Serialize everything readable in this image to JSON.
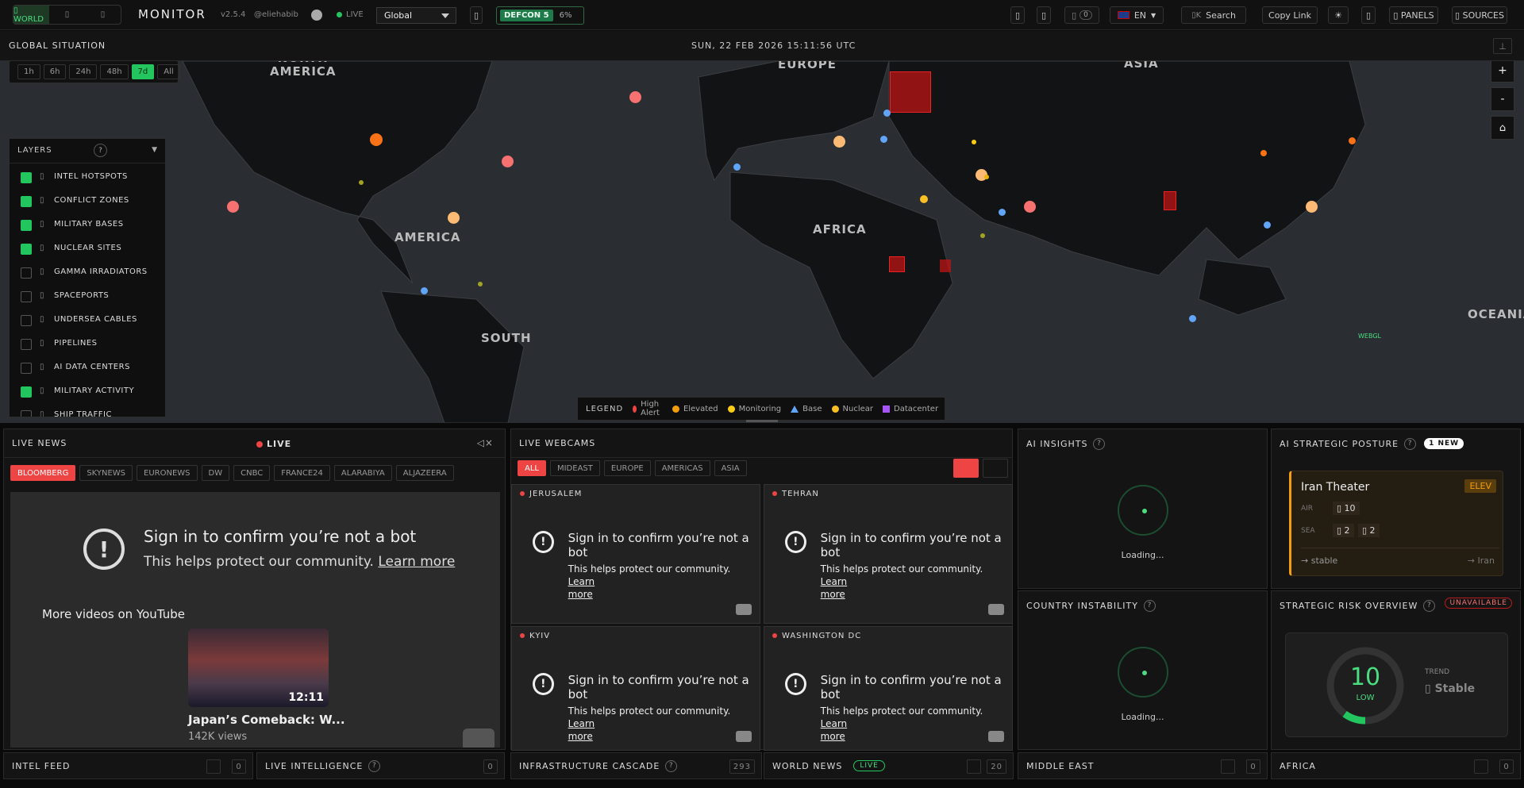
{
  "topbar": {
    "variant_tabs": [
      "▯ WORLD",
      "▯",
      "▯"
    ],
    "brand": "MONITOR",
    "version": "v2.5.4",
    "author": "@eliehabib",
    "live_label": "LIVE",
    "region_select": "Global",
    "defcon_label": "DEFCON 5",
    "defcon_pct": "6%",
    "notif_count": "0",
    "lang": "EN",
    "search_shortcut": "▯K",
    "search_label": "Search",
    "copy_link": "Copy Link",
    "panels_label": "▯ PANELS",
    "sources_label": "▯ SOURCES"
  },
  "global": {
    "title": "GLOBAL SITUATION",
    "datetime": "SUN, 22 FEB 2026 15:11:56 UTC",
    "time_filters": [
      "1h",
      "6h",
      "24h",
      "48h",
      "7d",
      "All"
    ],
    "active_filter": "7d",
    "zoom_in": "+",
    "zoom_out": "-",
    "home": "⌂"
  },
  "layers": {
    "title": "LAYERS",
    "help": "?",
    "items": [
      {
        "label": "INTEL HOTSPOTS",
        "checked": true
      },
      {
        "label": "CONFLICT ZONES",
        "checked": true
      },
      {
        "label": "MILITARY BASES",
        "checked": true
      },
      {
        "label": "NUCLEAR SITES",
        "checked": true
      },
      {
        "label": "GAMMA IRRADIATORS",
        "checked": false
      },
      {
        "label": "SPACEPORTS",
        "checked": false
      },
      {
        "label": "UNDERSEA CABLES",
        "checked": false
      },
      {
        "label": "PIPELINES",
        "checked": false
      },
      {
        "label": "AI DATA CENTERS",
        "checked": false
      },
      {
        "label": "MILITARY ACTIVITY",
        "checked": true
      },
      {
        "label": "SHIP TRAFFIC",
        "checked": false
      }
    ]
  },
  "map_labels": {
    "north_america": "NORTH\nAMERICA",
    "europe": "EUROPE",
    "asia": "ASIA",
    "africa": "AFRICA",
    "america": "AMERICA",
    "south": "SOUTH",
    "oceania": "OCEANIA",
    "webgl": "WEBGL"
  },
  "legend": {
    "title": "LEGEND",
    "items": [
      {
        "label": "High Alert",
        "color": "#ef4444",
        "shape": "dot"
      },
      {
        "label": "Elevated",
        "color": "#f59e0b",
        "shape": "dot"
      },
      {
        "label": "Monitoring",
        "color": "#facc15",
        "shape": "dot"
      },
      {
        "label": "Base",
        "color": "#60a5fa",
        "shape": "triangle"
      },
      {
        "label": "Nuclear",
        "color": "#fbbf24",
        "shape": "dot"
      },
      {
        "label": "Datacenter",
        "color": "#a855f7",
        "shape": "square"
      }
    ]
  },
  "live_news": {
    "title": "LIVE NEWS",
    "live": "LIVE",
    "channels": [
      "BLOOMBERG",
      "SKYNEWS",
      "EURONEWS",
      "DW",
      "CNBC",
      "FRANCE24",
      "ALARABIYA",
      "ALJAZEERA"
    ],
    "active": "BLOOMBERG",
    "bot_title": "Sign in to confirm you’re not a bot",
    "bot_sub": "This helps protect our community.",
    "learn_more": "Learn more",
    "more_videos": "More videos on YouTube",
    "video_duration": "12:11",
    "video_title": "Japan’s Comeback: W...",
    "video_views": "142K views"
  },
  "webcams": {
    "title": "LIVE WEBCAMS",
    "filters": [
      "ALL",
      "MIDEAST",
      "EUROPE",
      "AMERICAS",
      "ASIA"
    ],
    "active": "ALL",
    "cams": [
      {
        "name": "JERUSALEM"
      },
      {
        "name": "TEHRAN"
      },
      {
        "name": "KYIV"
      },
      {
        "name": "WASHINGTON DC"
      }
    ],
    "bot_title": "Sign in to confirm you’re not a bot",
    "bot_sub": "This helps protect our community.",
    "learn": "Learn",
    "more": "more"
  },
  "ai_insights": {
    "title": "AI INSIGHTS",
    "loading": "Loading..."
  },
  "country_instability": {
    "title": "COUNTRY INSTABILITY",
    "loading": "Loading..."
  },
  "strategic_posture": {
    "title": "AI STRATEGIC POSTURE",
    "badge": "1 NEW",
    "theater": "Iran Theater",
    "level": "ELEV",
    "air_label": "AIR",
    "air_val": "▯ 10",
    "sea_label": "SEA",
    "sea_val1": "▯ 2",
    "sea_val2": "▯ 2",
    "trend": "→ stable",
    "target": "→ Iran"
  },
  "risk_overview": {
    "title": "STRATEGIC RISK OVERVIEW",
    "badge": "UNAVAILABLE",
    "score": "10",
    "score_pct": 0.1,
    "level": "LOW",
    "trend_label": "TREND",
    "trend_val": "▯ Stable"
  },
  "bottom": [
    {
      "title": "INTEL FEED",
      "count": "0"
    },
    {
      "title": "LIVE INTELLIGENCE",
      "count": "0"
    },
    {
      "title": "INFRASTRUCTURE CASCADE",
      "count": "293"
    },
    {
      "title": "WORLD NEWS",
      "badge": "LIVE",
      "count": "20"
    },
    {
      "title": "MIDDLE EAST",
      "count": "0"
    },
    {
      "title": "AFRICA",
      "count": "0"
    }
  ]
}
